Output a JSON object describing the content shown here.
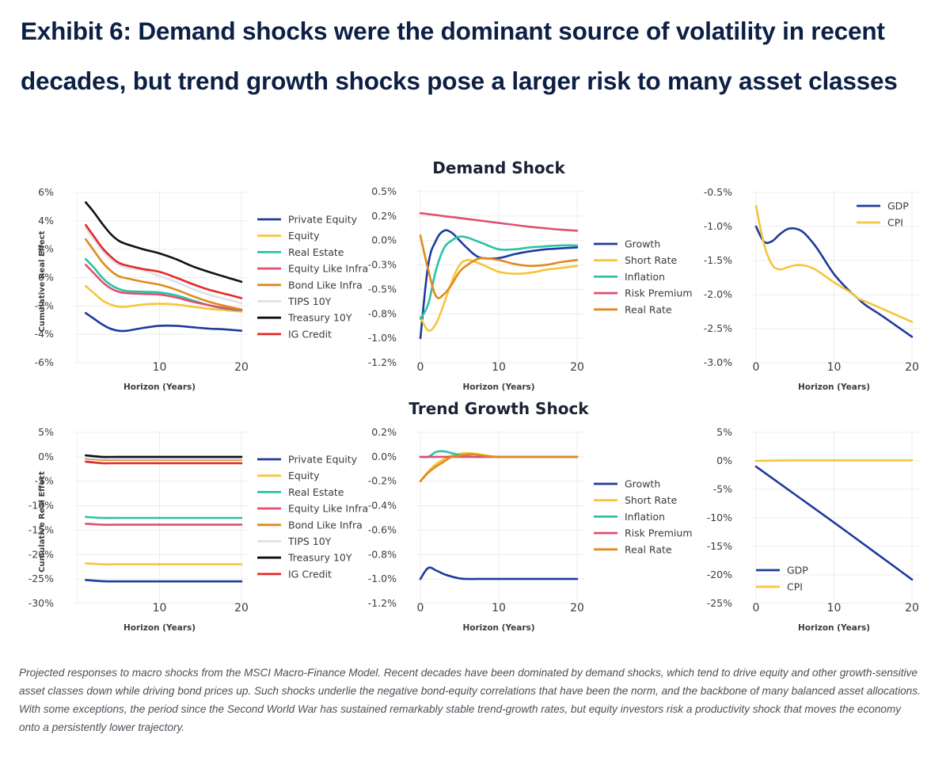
{
  "title": "Exhibit 6: Demand shocks were the dominant source of volatility in recent decades, but trend growth shocks pose a larger risk to many asset classes",
  "caption": "Projected responses to macro shocks from the MSCI Macro-Finance Model. Recent decades have been dominated by demand shocks, which tend to drive equity and other growth-sensitive asset classes down while driving bond prices up. Such shocks underlie the negative bond-equity correlations that have been the norm, and the backbone of many balanced asset allocations. With some exceptions, the period since the Second World War has sustained remarkably stable trend-growth rates, but equity investors risk a productivity shock that moves the economy onto a persistently lower trajectory.",
  "row_titles": {
    "demand": "Demand Shock",
    "trend": "Trend Growth Shock"
  },
  "colors": {
    "Private Equity": "#1f3a9e",
    "Equity": "#f5c53c",
    "Real Estate": "#2bc1a8",
    "Equity Like Infra": "#e0506e",
    "Bond Like Infra": "#e08a1e",
    "TIPS 10Y": "#dde1ea",
    "Treasury 10Y": "#111111",
    "IG Credit": "#e32a2a",
    "Growth": "#1f3a9e",
    "Short Rate": "#f5c53c",
    "Inflation": "#2bc1a8",
    "Risk Premium": "#e0506e",
    "Real Rate": "#e08a1e",
    "GDP": "#1f3a9e",
    "CPI": "#f5c53c"
  },
  "chart_data": [
    {
      "id": "demand-assets",
      "type": "line",
      "row": "Demand Shock",
      "xlabel": "Horizon (Years)",
      "ylabel": "Cumulative Real Effect",
      "xlim": [
        0,
        20
      ],
      "ylim": [
        -6,
        6
      ],
      "xticks": [
        10,
        20
      ],
      "xtick_labels": [
        "10",
        "20"
      ],
      "yticks": [
        6,
        4,
        2,
        0,
        -2,
        -4,
        -6
      ],
      "ytick_labels": [
        "6%",
        "4%",
        "2%",
        "0%",
        "-2%",
        "-4%",
        "-6%"
      ],
      "grid": true,
      "legend": "right",
      "x": [
        1,
        2,
        3,
        4,
        5,
        6,
        8,
        10,
        12,
        14,
        16,
        18,
        20
      ],
      "series": [
        {
          "name": "Private Equity",
          "values": [
            -2.5,
            -2.9,
            -3.3,
            -3.6,
            -3.75,
            -3.75,
            -3.55,
            -3.4,
            -3.4,
            -3.5,
            -3.6,
            -3.65,
            -3.75
          ]
        },
        {
          "name": "Equity",
          "values": [
            -0.6,
            -1.1,
            -1.6,
            -1.9,
            -2.05,
            -2.05,
            -1.9,
            -1.85,
            -1.9,
            -2.05,
            -2.2,
            -2.3,
            -2.4
          ]
        },
        {
          "name": "Real Estate",
          "values": [
            1.3,
            0.7,
            0.0,
            -0.5,
            -0.8,
            -0.95,
            -1.0,
            -1.05,
            -1.25,
            -1.6,
            -1.95,
            -2.2,
            -2.3
          ]
        },
        {
          "name": "Equity Like Infra",
          "values": [
            0.9,
            0.3,
            -0.3,
            -0.75,
            -1.0,
            -1.1,
            -1.15,
            -1.2,
            -1.4,
            -1.7,
            -1.95,
            -2.15,
            -2.3
          ]
        },
        {
          "name": "Bond Like Infra",
          "values": [
            2.7,
            1.9,
            1.1,
            0.5,
            0.1,
            -0.05,
            -0.3,
            -0.5,
            -0.85,
            -1.3,
            -1.7,
            -2.0,
            -2.25
          ]
        },
        {
          "name": "TIPS 10Y",
          "values": [
            3.5,
            2.7,
            1.9,
            1.3,
            0.9,
            0.7,
            0.5,
            0.1,
            -0.3,
            -0.8,
            -1.2,
            -1.5,
            -1.8
          ]
        },
        {
          "name": "Treasury 10Y",
          "values": [
            5.3,
            4.6,
            3.8,
            3.1,
            2.6,
            2.35,
            2.0,
            1.7,
            1.3,
            0.8,
            0.4,
            0.05,
            -0.3
          ]
        },
        {
          "name": "IG Credit",
          "values": [
            3.7,
            2.9,
            2.1,
            1.5,
            1.05,
            0.85,
            0.6,
            0.4,
            0.0,
            -0.45,
            -0.85,
            -1.15,
            -1.45
          ]
        }
      ]
    },
    {
      "id": "demand-factors",
      "type": "line",
      "row": "Demand Shock",
      "xlabel": "Horizon (Years)",
      "ylabel": "",
      "xlim": [
        0,
        20
      ],
      "ylim": [
        -1.25,
        0.5
      ],
      "xticks": [
        0,
        10,
        20
      ],
      "xtick_labels": [
        "0",
        "10",
        "20"
      ],
      "yticks": [
        0.5,
        0.25,
        0.0,
        -0.25,
        -0.5,
        -0.75,
        -1.0,
        -1.25
      ],
      "ytick_labels": [
        "0.5%",
        "0.2%",
        "0.0%",
        "-0.3%",
        "-0.5%",
        "-0.8%",
        "-1.0%",
        "-1.2%"
      ],
      "grid": true,
      "legend": "right",
      "x": [
        0,
        1,
        2,
        3,
        4,
        5,
        6,
        7,
        8,
        10,
        12,
        14,
        16,
        18,
        20
      ],
      "series": [
        {
          "name": "Growth",
          "values": [
            -1.0,
            -0.25,
            0.0,
            0.1,
            0.08,
            0.0,
            -0.08,
            -0.15,
            -0.18,
            -0.18,
            -0.14,
            -0.11,
            -0.09,
            -0.08,
            -0.07
          ]
        },
        {
          "name": "Short Rate",
          "values": [
            -0.78,
            -0.92,
            -0.85,
            -0.65,
            -0.42,
            -0.25,
            -0.2,
            -0.22,
            -0.25,
            -0.32,
            -0.34,
            -0.33,
            -0.3,
            -0.28,
            -0.26
          ]
        },
        {
          "name": "Inflation",
          "values": [
            -0.8,
            -0.65,
            -0.3,
            -0.08,
            0.0,
            0.04,
            0.03,
            0.0,
            -0.03,
            -0.09,
            -0.09,
            -0.07,
            -0.06,
            -0.05,
            -0.05
          ]
        },
        {
          "name": "Risk Premium",
          "values": [
            0.28,
            0.27,
            0.26,
            0.25,
            0.24,
            0.23,
            0.22,
            0.21,
            0.2,
            0.18,
            0.16,
            0.14,
            0.125,
            0.11,
            0.1
          ]
        },
        {
          "name": "Real Rate",
          "values": [
            0.05,
            -0.3,
            -0.57,
            -0.55,
            -0.45,
            -0.32,
            -0.25,
            -0.2,
            -0.18,
            -0.2,
            -0.24,
            -0.26,
            -0.25,
            -0.22,
            -0.2
          ]
        }
      ]
    },
    {
      "id": "demand-macro",
      "type": "line",
      "row": "Demand Shock",
      "xlabel": "Horizon (Years)",
      "ylabel": "",
      "xlim": [
        0,
        20
      ],
      "ylim": [
        -3.0,
        -0.5
      ],
      "xticks": [
        0,
        10,
        20
      ],
      "xtick_labels": [
        "0",
        "10",
        "20"
      ],
      "yticks": [
        -0.5,
        -1.0,
        -1.5,
        -2.0,
        -2.5,
        -3.0
      ],
      "ytick_labels": [
        "-0.5%",
        "-1.0%",
        "-1.5%",
        "-2.0%",
        "-2.5%",
        "-3.0%"
      ],
      "grid": true,
      "legend": "top-right",
      "x": [
        0,
        1,
        2,
        3,
        4,
        5,
        6,
        7,
        8,
        10,
        12,
        13,
        14,
        16,
        18,
        20
      ],
      "series": [
        {
          "name": "GDP",
          "values": [
            -1.0,
            -1.22,
            -1.22,
            -1.12,
            -1.04,
            -1.03,
            -1.08,
            -1.2,
            -1.35,
            -1.7,
            -1.95,
            -2.05,
            -2.15,
            -2.3,
            -2.46,
            -2.62
          ]
        },
        {
          "name": "CPI",
          "values": [
            -0.7,
            -1.25,
            -1.55,
            -1.63,
            -1.6,
            -1.57,
            -1.57,
            -1.6,
            -1.66,
            -1.82,
            -1.96,
            -2.05,
            -2.1,
            -2.2,
            -2.3,
            -2.4
          ]
        }
      ]
    },
    {
      "id": "trend-assets",
      "type": "line",
      "row": "Trend Growth Shock",
      "xlabel": "Horizon (Years)",
      "ylabel": "Cumulative Real Effect",
      "xlim": [
        0,
        20
      ],
      "ylim": [
        -30,
        5
      ],
      "xticks": [
        10,
        20
      ],
      "xtick_labels": [
        "10",
        "20"
      ],
      "yticks": [
        5,
        0,
        -5,
        -10,
        -15,
        -20,
        -25,
        -30
      ],
      "ytick_labels": [
        "5%",
        "0%",
        "-5%",
        "-10%",
        "-15%",
        "-20%",
        "-25%",
        "-30%"
      ],
      "grid": true,
      "legend": "right",
      "x": [
        1,
        3,
        5,
        10,
        15,
        20
      ],
      "series": [
        {
          "name": "Private Equity",
          "values": [
            -25.2,
            -25.45,
            -25.5,
            -25.5,
            -25.5,
            -25.5
          ]
        },
        {
          "name": "Equity",
          "values": [
            -21.8,
            -22.0,
            -22.0,
            -22.0,
            -22.0,
            -22.0
          ]
        },
        {
          "name": "Real Estate",
          "values": [
            -12.3,
            -12.5,
            -12.5,
            -12.5,
            -12.5,
            -12.5
          ]
        },
        {
          "name": "Equity Like Infra",
          "values": [
            -13.7,
            -13.9,
            -13.9,
            -13.9,
            -13.9,
            -13.9
          ]
        },
        {
          "name": "Bond Like Infra",
          "values": [
            -0.4,
            -0.6,
            -0.6,
            -0.6,
            -0.6,
            -0.6
          ]
        },
        {
          "name": "TIPS 10Y",
          "values": [
            -0.2,
            -0.4,
            -0.4,
            -0.4,
            -0.4,
            -0.4
          ]
        },
        {
          "name": "Treasury 10Y",
          "values": [
            0.3,
            0.0,
            0.0,
            0.0,
            0.0,
            0.0
          ]
        },
        {
          "name": "IG Credit",
          "values": [
            -1.0,
            -1.3,
            -1.3,
            -1.3,
            -1.3,
            -1.3
          ]
        }
      ]
    },
    {
      "id": "trend-factors",
      "type": "line",
      "row": "Trend Growth Shock",
      "xlabel": "Horizon (Years)",
      "ylabel": "",
      "xlim": [
        0,
        20
      ],
      "ylim": [
        -1.2,
        0.2
      ],
      "xticks": [
        0,
        10,
        20
      ],
      "xtick_labels": [
        "0",
        "10",
        "20"
      ],
      "yticks": [
        0.2,
        0.0,
        -0.2,
        -0.4,
        -0.6,
        -0.8,
        -1.0,
        -1.2
      ],
      "ytick_labels": [
        "0.2%",
        "0.0%",
        "-0.2%",
        "-0.4%",
        "-0.6%",
        "-0.8%",
        "-1.0%",
        "-1.2%"
      ],
      "grid": true,
      "legend": "right",
      "x": [
        0,
        1,
        2,
        3,
        4,
        5,
        6,
        7,
        8,
        10,
        15,
        20
      ],
      "series": [
        {
          "name": "Growth",
          "values": [
            -1.0,
            -0.91,
            -0.93,
            -0.96,
            -0.98,
            -0.995,
            -1.0,
            -1.0,
            -1.0,
            -1.0,
            -1.0,
            -1.0
          ]
        },
        {
          "name": "Short Rate",
          "values": [
            -0.2,
            -0.12,
            -0.06,
            -0.02,
            0.01,
            0.025,
            0.03,
            0.025,
            0.015,
            0.0,
            0.0,
            0.0
          ]
        },
        {
          "name": "Inflation",
          "values": [
            0.0,
            0.0,
            0.04,
            0.045,
            0.03,
            0.015,
            0.005,
            0.0,
            0.0,
            0.0,
            0.0,
            0.0
          ]
        },
        {
          "name": "Risk Premium",
          "values": [
            0.0,
            0.0,
            0.0,
            0.0,
            0.0,
            0.0,
            0.0,
            0.0,
            0.0,
            0.0,
            0.0,
            0.0
          ]
        },
        {
          "name": "Real Rate",
          "values": [
            -0.2,
            -0.13,
            -0.08,
            -0.04,
            0.0,
            0.01,
            0.02,
            0.02,
            0.01,
            0.0,
            0.0,
            0.0
          ]
        }
      ]
    },
    {
      "id": "trend-macro",
      "type": "line",
      "row": "Trend Growth Shock",
      "xlabel": "Horizon (Years)",
      "ylabel": "",
      "xlim": [
        0,
        20
      ],
      "ylim": [
        -25,
        5
      ],
      "xticks": [
        0,
        10,
        20
      ],
      "xtick_labels": [
        "0",
        "10",
        "20"
      ],
      "yticks": [
        5,
        0,
        -5,
        -10,
        -15,
        -20,
        -25
      ],
      "ytick_labels": [
        "5%",
        "0%",
        "-5%",
        "-10%",
        "-15%",
        "-20%",
        "-25%"
      ],
      "grid": true,
      "legend": "bottom-left",
      "x": [
        0,
        5,
        10,
        15,
        20
      ],
      "series": [
        {
          "name": "GDP",
          "values": [
            -1.0,
            -5.9,
            -10.8,
            -15.8,
            -20.8
          ]
        },
        {
          "name": "CPI",
          "values": [
            0.0,
            0.1,
            0.1,
            0.1,
            0.1
          ]
        }
      ]
    }
  ]
}
